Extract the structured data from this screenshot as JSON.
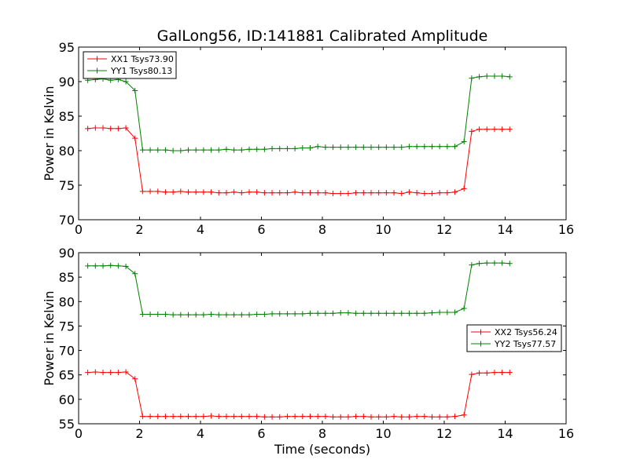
{
  "figure_title": "GalLong56, ID:141881 Calibrated Amplitude",
  "x_label": "Time (seconds)",
  "colors": {
    "red": "#ff0000",
    "green": "#008000"
  },
  "chart_data": [
    {
      "type": "line",
      "title": "GalLong56, ID:141881 Calibrated Amplitude",
      "xlabel": "",
      "ylabel": "Power in Kelvin",
      "xlim": [
        0,
        16
      ],
      "ylim": [
        70,
        95
      ],
      "xticks": [
        "0",
        "2",
        "4",
        "6",
        "8",
        "10",
        "12",
        "14",
        "16"
      ],
      "yticks": [
        "70",
        "75",
        "80",
        "85",
        "90",
        "95"
      ],
      "legend_loc": "upper-left",
      "x": [
        0.3,
        0.55,
        0.8,
        1.05,
        1.3,
        1.55,
        1.85,
        2.1,
        2.35,
        2.6,
        2.85,
        3.1,
        3.35,
        3.6,
        3.85,
        4.1,
        4.35,
        4.6,
        4.85,
        5.1,
        5.35,
        5.6,
        5.85,
        6.1,
        6.35,
        6.6,
        6.85,
        7.1,
        7.35,
        7.6,
        7.85,
        8.1,
        8.35,
        8.6,
        8.85,
        9.1,
        9.35,
        9.6,
        9.85,
        10.1,
        10.35,
        10.6,
        10.85,
        11.1,
        11.35,
        11.6,
        11.85,
        12.1,
        12.35,
        12.65,
        12.9,
        13.15,
        13.4,
        13.65,
        13.9,
        14.15
      ],
      "series": [
        {
          "name": "XX1 Tsys73.90",
          "color": "#ff0000",
          "values": [
            83.2,
            83.3,
            83.3,
            83.2,
            83.2,
            83.3,
            81.8,
            74.1,
            74.1,
            74.1,
            74.0,
            74.0,
            74.1,
            74.0,
            74.0,
            74.0,
            74.0,
            73.9,
            73.9,
            74.0,
            73.9,
            74.0,
            74.0,
            73.9,
            73.9,
            73.9,
            73.9,
            74.0,
            73.9,
            73.9,
            73.9,
            73.9,
            73.8,
            73.8,
            73.8,
            73.9,
            73.9,
            73.9,
            73.9,
            73.9,
            73.9,
            73.8,
            74.0,
            73.9,
            73.8,
            73.8,
            73.9,
            73.9,
            74.0,
            74.5,
            82.8,
            83.1,
            83.1,
            83.1,
            83.1,
            83.1
          ]
        },
        {
          "name": "YY1 Tsys80.13",
          "color": "#008000",
          "values": [
            90.2,
            90.3,
            90.4,
            90.2,
            90.3,
            90.0,
            88.7,
            80.1,
            80.1,
            80.1,
            80.1,
            80.0,
            80.0,
            80.1,
            80.1,
            80.1,
            80.1,
            80.1,
            80.2,
            80.1,
            80.1,
            80.2,
            80.2,
            80.2,
            80.3,
            80.3,
            80.3,
            80.3,
            80.4,
            80.4,
            80.6,
            80.5,
            80.5,
            80.5,
            80.5,
            80.5,
            80.5,
            80.5,
            80.5,
            80.5,
            80.5,
            80.5,
            80.6,
            80.6,
            80.6,
            80.6,
            80.6,
            80.6,
            80.6,
            81.3,
            90.5,
            90.7,
            90.8,
            90.8,
            90.8,
            90.7
          ]
        }
      ]
    },
    {
      "type": "line",
      "title": "",
      "xlabel": "Time (seconds)",
      "ylabel": "Power in Kelvin",
      "xlim": [
        0,
        16
      ],
      "ylim": [
        55,
        90
      ],
      "xticks": [
        "0",
        "2",
        "4",
        "6",
        "8",
        "10",
        "12",
        "14",
        "16"
      ],
      "yticks": [
        "55",
        "60",
        "65",
        "70",
        "75",
        "80",
        "85",
        "90"
      ],
      "legend_loc": "center-right",
      "x": [
        0.3,
        0.55,
        0.8,
        1.05,
        1.3,
        1.55,
        1.85,
        2.1,
        2.35,
        2.6,
        2.85,
        3.1,
        3.35,
        3.6,
        3.85,
        4.1,
        4.35,
        4.6,
        4.85,
        5.1,
        5.35,
        5.6,
        5.85,
        6.1,
        6.35,
        6.6,
        6.85,
        7.1,
        7.35,
        7.6,
        7.85,
        8.1,
        8.35,
        8.6,
        8.85,
        9.1,
        9.35,
        9.6,
        9.85,
        10.1,
        10.35,
        10.6,
        10.85,
        11.1,
        11.35,
        11.6,
        11.85,
        12.1,
        12.35,
        12.65,
        12.9,
        13.15,
        13.4,
        13.65,
        13.9,
        14.15
      ],
      "series": [
        {
          "name": "XX2 Tsys56.24",
          "color": "#ff0000",
          "values": [
            65.5,
            65.6,
            65.5,
            65.5,
            65.5,
            65.6,
            64.2,
            56.5,
            56.5,
            56.5,
            56.5,
            56.5,
            56.5,
            56.5,
            56.5,
            56.5,
            56.6,
            56.5,
            56.5,
            56.5,
            56.5,
            56.5,
            56.5,
            56.4,
            56.4,
            56.4,
            56.5,
            56.5,
            56.5,
            56.5,
            56.5,
            56.5,
            56.4,
            56.4,
            56.4,
            56.5,
            56.5,
            56.4,
            56.4,
            56.4,
            56.5,
            56.4,
            56.4,
            56.5,
            56.5,
            56.4,
            56.4,
            56.4,
            56.5,
            56.8,
            65.1,
            65.4,
            65.4,
            65.5,
            65.5,
            65.5
          ]
        },
        {
          "name": "YY2 Tsys77.57",
          "color": "#008000",
          "values": [
            87.3,
            87.3,
            87.3,
            87.4,
            87.3,
            87.2,
            85.7,
            77.4,
            77.4,
            77.4,
            77.4,
            77.3,
            77.3,
            77.3,
            77.3,
            77.3,
            77.4,
            77.3,
            77.3,
            77.3,
            77.3,
            77.3,
            77.4,
            77.4,
            77.5,
            77.5,
            77.5,
            77.5,
            77.5,
            77.6,
            77.6,
            77.6,
            77.6,
            77.7,
            77.7,
            77.6,
            77.6,
            77.6,
            77.6,
            77.6,
            77.6,
            77.6,
            77.6,
            77.6,
            77.6,
            77.7,
            77.8,
            77.8,
            77.8,
            78.6,
            87.5,
            87.8,
            87.9,
            87.9,
            87.9,
            87.8
          ]
        }
      ]
    }
  ]
}
